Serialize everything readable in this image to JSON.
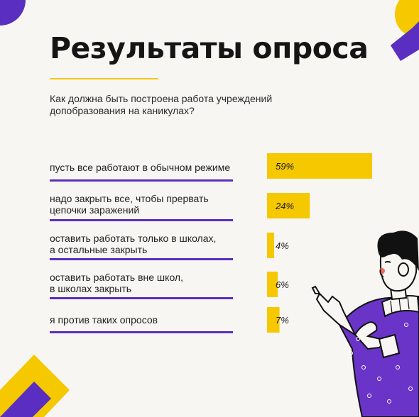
{
  "title": "Результаты опроса",
  "question": "Как должна быть построена работа учреждений допобразования на каникулах?",
  "colors": {
    "accent": "#f5c800",
    "purple": "#5a2ec0",
    "background": "#f8f6f2"
  },
  "chart_data": {
    "type": "bar",
    "orientation": "horizontal",
    "categories": [
      "пусть все работают в обычном режиме",
      "надо закрыть все, чтобы прервать цепочки заражений",
      "оставить работать только в школах, а остальные закрыть",
      "оставить работать вне школ, в школах закрыть",
      "я против таких опросов"
    ],
    "category_lines": [
      [
        "пусть все работают в обычном режиме"
      ],
      [
        "надо закрыть все, чтобы прервать",
        "цепочки заражений"
      ],
      [
        "оставить работать только в школах,",
        "а остальные закрыть"
      ],
      [
        "оставить работать вне школ,",
        "в школах закрыть"
      ],
      [
        "я против таких опросов"
      ]
    ],
    "values": [
      59,
      24,
      4,
      6,
      7
    ],
    "value_labels": [
      "59%",
      "24%",
      "4%",
      "6%",
      "7%"
    ],
    "unit": "%",
    "bar_color": "#f5c800",
    "grid": false,
    "legend": "none"
  }
}
